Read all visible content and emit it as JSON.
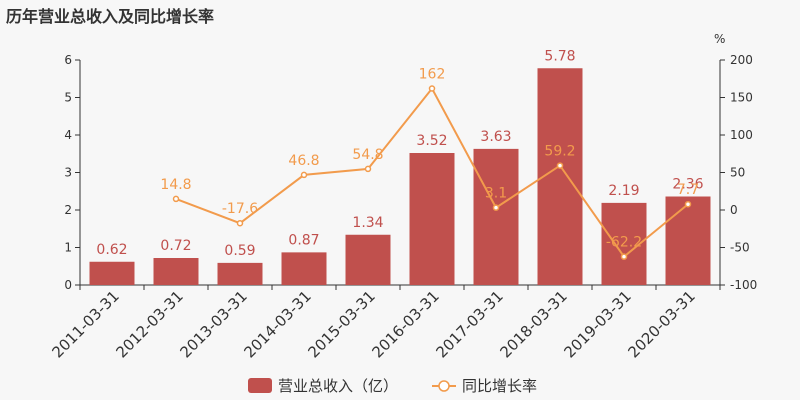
{
  "title": "历年营业总收入及同比增长率",
  "colors": {
    "bar": "#c0504d",
    "line": "#f29b4c",
    "axis": "#333333",
    "background": "#f7f7f7"
  },
  "chart_data": {
    "type": "bar",
    "categories": [
      "2011-03-31",
      "2012-03-31",
      "2013-03-31",
      "2014-03-31",
      "2015-03-31",
      "2016-03-31",
      "2017-03-31",
      "2018-03-31",
      "2019-03-31",
      "2020-03-31"
    ],
    "series": [
      {
        "name": "营业总收入（亿）",
        "type": "bar",
        "axis": "left",
        "values": [
          0.62,
          0.72,
          0.59,
          0.87,
          1.34,
          3.52,
          3.63,
          5.78,
          2.19,
          2.36
        ],
        "labels": [
          "0.62",
          "0.72",
          "0.59",
          "0.87",
          "1.34",
          "3.52",
          "3.63",
          "5.78",
          "2.19",
          "2.36"
        ]
      },
      {
        "name": "同比增长率",
        "type": "line",
        "axis": "right",
        "values": [
          null,
          14.8,
          -17.6,
          46.8,
          54.8,
          162,
          3.1,
          59.2,
          -62.2,
          7.7
        ],
        "labels": [
          null,
          "14.8",
          "-17.6",
          "46.8",
          "54.8",
          "162",
          "3.1",
          "59.2",
          "-62.2",
          "7.7"
        ]
      }
    ],
    "y_left": {
      "ylim": [
        0,
        6
      ],
      "ticks": [
        "0",
        "1",
        "2",
        "3",
        "4",
        "5",
        "6"
      ]
    },
    "y_right": {
      "ylim": [
        -100,
        200
      ],
      "ticks": [
        "-100",
        "-50",
        "0",
        "50",
        "100",
        "150",
        "200"
      ],
      "unit": "%"
    },
    "legend": "bottom-center",
    "grid": false
  }
}
